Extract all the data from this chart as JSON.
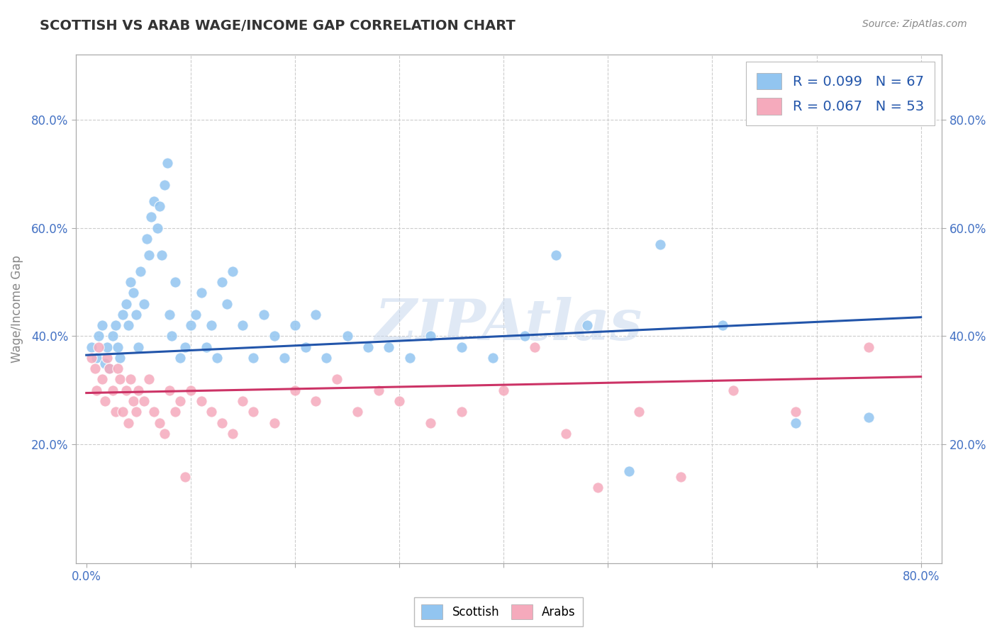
{
  "title": "SCOTTISH VS ARAB WAGE/INCOME GAP CORRELATION CHART",
  "source_text": "Source: ZipAtlas.com",
  "ylabel": "Wage/Income Gap",
  "xlim": [
    -0.01,
    0.82
  ],
  "ylim": [
    -0.02,
    0.92
  ],
  "xticks": [
    0.0,
    0.1,
    0.2,
    0.3,
    0.4,
    0.5,
    0.6,
    0.7,
    0.8
  ],
  "xticklabels": [
    "0.0%",
    "",
    "",
    "",
    "",
    "",
    "",
    "",
    "80.0%"
  ],
  "ytick_positions": [
    0.2,
    0.4,
    0.6,
    0.8
  ],
  "ytick_labels": [
    "20.0%",
    "40.0%",
    "60.0%",
    "80.0%"
  ],
  "scottish_color": "#92C5F0",
  "arab_color": "#F5AABC",
  "scottish_line_color": "#2255AA",
  "arab_line_color": "#CC3366",
  "scottish_R": 0.099,
  "scottish_N": 67,
  "arab_R": 0.067,
  "arab_N": 53,
  "background_color": "#FFFFFF",
  "grid_color": "#CCCCCC",
  "title_color": "#333333",
  "legend_text_color": "#2255AA",
  "watermark": "ZIPAtlas",
  "scottish_line_x0": 0.0,
  "scottish_line_y0": 0.365,
  "scottish_line_x1": 0.8,
  "scottish_line_y1": 0.435,
  "arab_line_x0": 0.0,
  "arab_line_y0": 0.295,
  "arab_line_x1": 0.8,
  "arab_line_y1": 0.325,
  "scottish_x": [
    0.005,
    0.01,
    0.012,
    0.015,
    0.018,
    0.02,
    0.022,
    0.025,
    0.028,
    0.03,
    0.032,
    0.035,
    0.038,
    0.04,
    0.042,
    0.045,
    0.048,
    0.05,
    0.052,
    0.055,
    0.058,
    0.06,
    0.062,
    0.065,
    0.068,
    0.07,
    0.072,
    0.075,
    0.078,
    0.08,
    0.082,
    0.085,
    0.09,
    0.095,
    0.1,
    0.105,
    0.11,
    0.115,
    0.12,
    0.125,
    0.13,
    0.135,
    0.14,
    0.15,
    0.16,
    0.17,
    0.18,
    0.19,
    0.2,
    0.21,
    0.22,
    0.23,
    0.25,
    0.27,
    0.29,
    0.31,
    0.33,
    0.36,
    0.39,
    0.42,
    0.45,
    0.48,
    0.52,
    0.55,
    0.61,
    0.68,
    0.75
  ],
  "scottish_y": [
    0.38,
    0.36,
    0.4,
    0.42,
    0.35,
    0.38,
    0.34,
    0.4,
    0.42,
    0.38,
    0.36,
    0.44,
    0.46,
    0.42,
    0.5,
    0.48,
    0.44,
    0.38,
    0.52,
    0.46,
    0.58,
    0.55,
    0.62,
    0.65,
    0.6,
    0.64,
    0.55,
    0.68,
    0.72,
    0.44,
    0.4,
    0.5,
    0.36,
    0.38,
    0.42,
    0.44,
    0.48,
    0.38,
    0.42,
    0.36,
    0.5,
    0.46,
    0.52,
    0.42,
    0.36,
    0.44,
    0.4,
    0.36,
    0.42,
    0.38,
    0.44,
    0.36,
    0.4,
    0.38,
    0.38,
    0.36,
    0.4,
    0.38,
    0.36,
    0.4,
    0.55,
    0.42,
    0.15,
    0.57,
    0.42,
    0.24,
    0.25
  ],
  "arab_x": [
    0.005,
    0.008,
    0.01,
    0.012,
    0.015,
    0.018,
    0.02,
    0.022,
    0.025,
    0.028,
    0.03,
    0.032,
    0.035,
    0.038,
    0.04,
    0.042,
    0.045,
    0.048,
    0.05,
    0.055,
    0.06,
    0.065,
    0.07,
    0.075,
    0.08,
    0.085,
    0.09,
    0.095,
    0.1,
    0.11,
    0.12,
    0.13,
    0.14,
    0.15,
    0.16,
    0.18,
    0.2,
    0.22,
    0.24,
    0.26,
    0.28,
    0.3,
    0.33,
    0.36,
    0.4,
    0.43,
    0.46,
    0.49,
    0.53,
    0.57,
    0.62,
    0.68,
    0.75
  ],
  "arab_y": [
    0.36,
    0.34,
    0.3,
    0.38,
    0.32,
    0.28,
    0.36,
    0.34,
    0.3,
    0.26,
    0.34,
    0.32,
    0.26,
    0.3,
    0.24,
    0.32,
    0.28,
    0.26,
    0.3,
    0.28,
    0.32,
    0.26,
    0.24,
    0.22,
    0.3,
    0.26,
    0.28,
    0.14,
    0.3,
    0.28,
    0.26,
    0.24,
    0.22,
    0.28,
    0.26,
    0.24,
    0.3,
    0.28,
    0.32,
    0.26,
    0.3,
    0.28,
    0.24,
    0.26,
    0.3,
    0.38,
    0.22,
    0.12,
    0.26,
    0.14,
    0.3,
    0.26,
    0.38
  ]
}
